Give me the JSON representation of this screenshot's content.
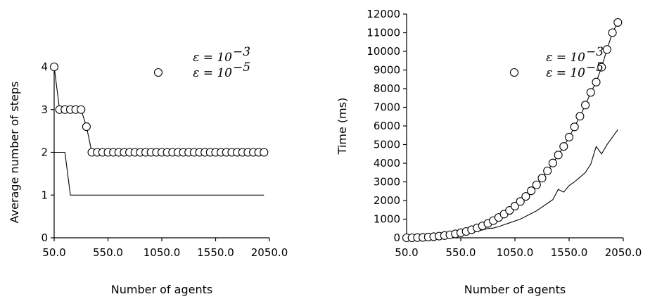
{
  "chart_data": [
    {
      "type": "line",
      "xlabel": "Number of agents",
      "ylabel": "Average number of steps",
      "xlim": [
        50,
        2050
      ],
      "ylim": [
        0,
        4
      ],
      "xticks": [
        "50.0",
        "550.0",
        "1050.0",
        "1550.0",
        "2050.0"
      ],
      "yticks": [
        "0",
        "1",
        "2",
        "3",
        "4"
      ],
      "legend_position": "top-right",
      "series": [
        {
          "name": "ε = 10^-3",
          "legend_main": "ε = 10",
          "legend_exp": "−3",
          "marker": "none",
          "x": [
            50,
            100,
            150,
            200,
            2000
          ],
          "y": [
            2,
            2,
            2,
            1,
            1
          ]
        },
        {
          "name": "ε = 10^-5",
          "legend_main": "ε = 10",
          "legend_exp": "−5",
          "marker": "circle",
          "x": [
            50,
            100,
            150,
            200,
            250,
            300,
            350,
            400,
            450,
            500,
            550,
            600,
            650,
            700,
            750,
            800,
            850,
            900,
            950,
            1000,
            1050,
            1100,
            1150,
            1200,
            1250,
            1300,
            1350,
            1400,
            1450,
            1500,
            1550,
            1600,
            1650,
            1700,
            1750,
            1800,
            1850,
            1900,
            1950,
            2000
          ],
          "y": [
            4,
            3,
            3,
            3,
            3,
            3,
            2.6,
            2,
            2,
            2,
            2,
            2,
            2,
            2,
            2,
            2,
            2,
            2,
            2,
            2,
            2,
            2,
            2,
            2,
            2,
            2,
            2,
            2,
            2,
            2,
            2,
            2,
            2,
            2,
            2,
            2,
            2,
            2,
            2,
            2
          ]
        }
      ]
    },
    {
      "type": "line",
      "xlabel": "Number of agents",
      "ylabel": "Time (ms)",
      "xlim": [
        50,
        2050
      ],
      "ylim": [
        0,
        12000
      ],
      "xticks": [
        "50.0",
        "550.0",
        "1050.0",
        "1550.0",
        "2050.0"
      ],
      "yticks": [
        "0",
        "1000",
        "2000",
        "3000",
        "4000",
        "5000",
        "6000",
        "7000",
        "8000",
        "9000",
        "10000",
        "11000",
        "12000"
      ],
      "legend_position": "top-right",
      "series": [
        {
          "name": "ε = 10^-3",
          "legend_main": "ε = 10",
          "legend_exp": "−3",
          "marker": "none",
          "x": [
            50,
            100,
            150,
            200,
            250,
            300,
            350,
            400,
            450,
            500,
            550,
            600,
            650,
            700,
            750,
            800,
            850,
            900,
            950,
            1000,
            1050,
            1100,
            1150,
            1200,
            1250,
            1300,
            1350,
            1400,
            1450,
            1500,
            1550,
            1600,
            1650,
            1700,
            1750,
            1800,
            1850,
            1900,
            1950,
            2000
          ],
          "y": [
            0,
            0,
            0,
            10,
            20,
            30,
            50,
            70,
            100,
            130,
            170,
            220,
            280,
            350,
            420,
            500,
            520,
            600,
            700,
            800,
            900,
            1000,
            1150,
            1300,
            1450,
            1650,
            1850,
            2050,
            2600,
            2450,
            2800,
            3000,
            3250,
            3500,
            3950,
            4900,
            4500,
            5000,
            5400,
            5800
          ]
        },
        {
          "name": "ε = 10^-5",
          "legend_main": "ε = 10",
          "legend_exp": "−5",
          "marker": "circle",
          "x": [
            50,
            100,
            150,
            200,
            250,
            300,
            350,
            400,
            450,
            500,
            550,
            600,
            650,
            700,
            750,
            800,
            850,
            900,
            950,
            1000,
            1050,
            1100,
            1150,
            1200,
            1250,
            1300,
            1350,
            1400,
            1450,
            1500,
            1550,
            1600,
            1650,
            1700,
            1750,
            1800,
            1850,
            1900,
            1950,
            2000
          ],
          "y": [
            0,
            0,
            10,
            20,
            40,
            60,
            90,
            120,
            160,
            210,
            270,
            340,
            430,
            530,
            640,
            770,
            920,
            1090,
            1270,
            1470,
            1700,
            1950,
            2220,
            2520,
            2840,
            3200,
            3590,
            4010,
            4440,
            4900,
            5400,
            5950,
            6520,
            7120,
            7800,
            8350,
            9150,
            10100,
            11000,
            11550
          ]
        }
      ]
    }
  ]
}
